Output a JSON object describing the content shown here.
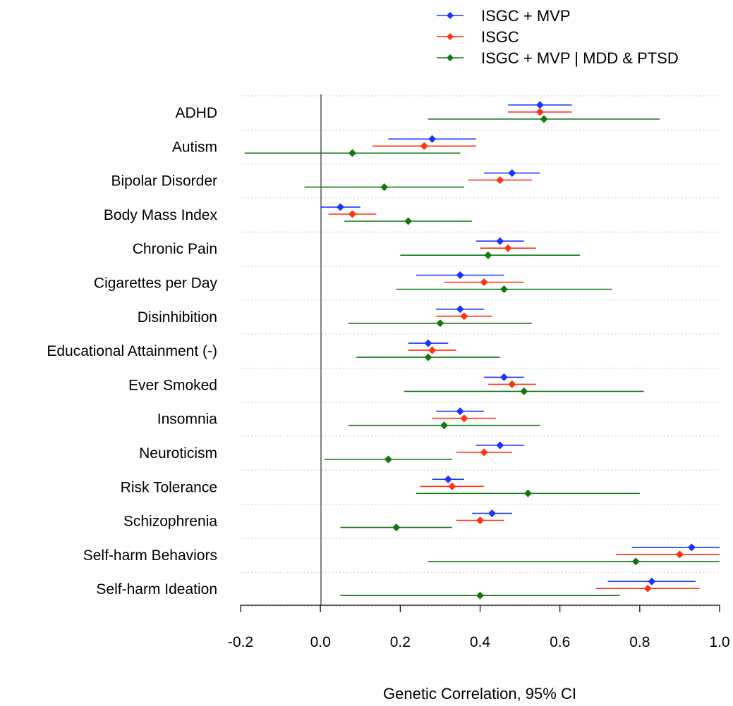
{
  "chart_data": {
    "type": "forest",
    "xlabel": "Genetic Correlation, 95% CI",
    "xlim": [
      -0.2,
      1.0
    ],
    "xticks": [
      "-0.2",
      "0.0",
      "0.2",
      "0.4",
      "0.6",
      "0.8",
      "1.0"
    ],
    "grid": "horizontal dotted",
    "legend_position": "top-right",
    "colors": {
      "isgc_mvp": "#1a33ff",
      "isgc": "#ff3311",
      "mdd_ptsd": "#117711"
    },
    "series": [
      {
        "name": "ISGC + MVP",
        "color": "#1a33ff",
        "estimates": [
          0.55,
          0.28,
          0.48,
          0.05,
          0.45,
          0.35,
          0.35,
          0.27,
          0.46,
          0.35,
          0.45,
          0.32,
          0.43,
          0.93,
          0.83
        ],
        "lower": [
          0.47,
          0.17,
          0.41,
          0.0,
          0.39,
          0.24,
          0.29,
          0.22,
          0.41,
          0.29,
          0.39,
          0.28,
          0.38,
          0.78,
          0.72
        ],
        "upper": [
          0.63,
          0.39,
          0.55,
          0.1,
          0.51,
          0.46,
          0.41,
          0.32,
          0.51,
          0.41,
          0.51,
          0.36,
          0.48,
          1.0,
          0.94
        ]
      },
      {
        "name": "ISGC",
        "color": "#ff3311",
        "estimates": [
          0.55,
          0.26,
          0.45,
          0.08,
          0.47,
          0.41,
          0.36,
          0.28,
          0.48,
          0.36,
          0.41,
          0.33,
          0.4,
          0.9,
          0.82
        ],
        "lower": [
          0.47,
          0.13,
          0.37,
          0.02,
          0.4,
          0.31,
          0.29,
          0.22,
          0.42,
          0.28,
          0.34,
          0.25,
          0.34,
          0.74,
          0.69
        ],
        "upper": [
          0.63,
          0.39,
          0.53,
          0.14,
          0.54,
          0.51,
          0.43,
          0.34,
          0.54,
          0.44,
          0.48,
          0.41,
          0.46,
          1.0,
          0.95
        ]
      },
      {
        "name": "ISGC + MVP | MDD & PTSD",
        "color": "#117711",
        "estimates": [
          0.56,
          0.08,
          0.16,
          0.22,
          0.42,
          0.46,
          0.3,
          0.27,
          0.51,
          0.31,
          0.17,
          0.52,
          0.19,
          0.79,
          0.4
        ],
        "lower": [
          0.27,
          -0.19,
          -0.04,
          0.06,
          0.2,
          0.19,
          0.07,
          0.09,
          0.21,
          0.07,
          0.01,
          0.24,
          0.05,
          0.27,
          0.05
        ],
        "upper": [
          0.85,
          0.35,
          0.36,
          0.38,
          0.65,
          0.73,
          0.53,
          0.45,
          0.81,
          0.55,
          0.33,
          0.8,
          0.33,
          1.0,
          0.75
        ]
      }
    ],
    "categories": [
      "ADHD",
      "Autism",
      "Bipolar Disorder",
      "Body Mass Index",
      "Chronic Pain",
      "Cigarettes per Day",
      "Disinhibition",
      "Educational Attainment (-)",
      "Ever Smoked",
      "Insomnia",
      "Neuroticism",
      "Risk Tolerance",
      "Schizophrenia",
      "Self-harm Behaviors",
      "Self-harm Ideation"
    ]
  }
}
